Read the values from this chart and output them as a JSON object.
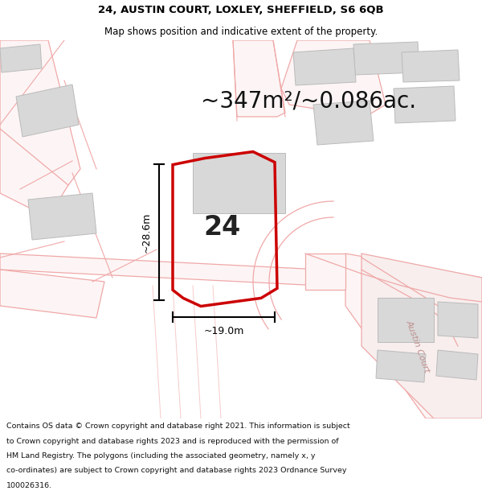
{
  "title_line1": "24, AUSTIN COURT, LOXLEY, SHEFFIELD, S6 6QB",
  "title_line2": "Map shows position and indicative extent of the property.",
  "area_text": "~347m²/~0.086ac.",
  "number_label": "24",
  "dim_height_label": "~28.6m",
  "dim_width_label": "~19.0m",
  "road_label": "Austin Court",
  "footer_lines": [
    "Contains OS data © Crown copyright and database right 2021. This information is subject",
    "to Crown copyright and database rights 2023 and is reproduced with the permission of",
    "HM Land Registry. The polygons (including the associated geometry, namely x, y",
    "co-ordinates) are subject to Crown copyright and database rights 2023 Ordnance Survey",
    "100026316."
  ],
  "bg_color": "#ffffff",
  "map_bg": "#ffffff",
  "road_outline_color": "#f0a8a8",
  "road_fill_color": "#fdf5f5",
  "building_color": "#d8d8d8",
  "building_edge": "#bbbbbb",
  "red_plot_color": "#cc0000",
  "dim_color": "#000000",
  "title_color": "#000000",
  "footer_color": "#111111",
  "title_fontsize": 9.5,
  "subtitle_fontsize": 8.5,
  "area_fontsize": 20,
  "number_fontsize": 24,
  "dim_fontsize": 9,
  "footer_fontsize": 6.8,
  "road_label_fontsize": 8
}
